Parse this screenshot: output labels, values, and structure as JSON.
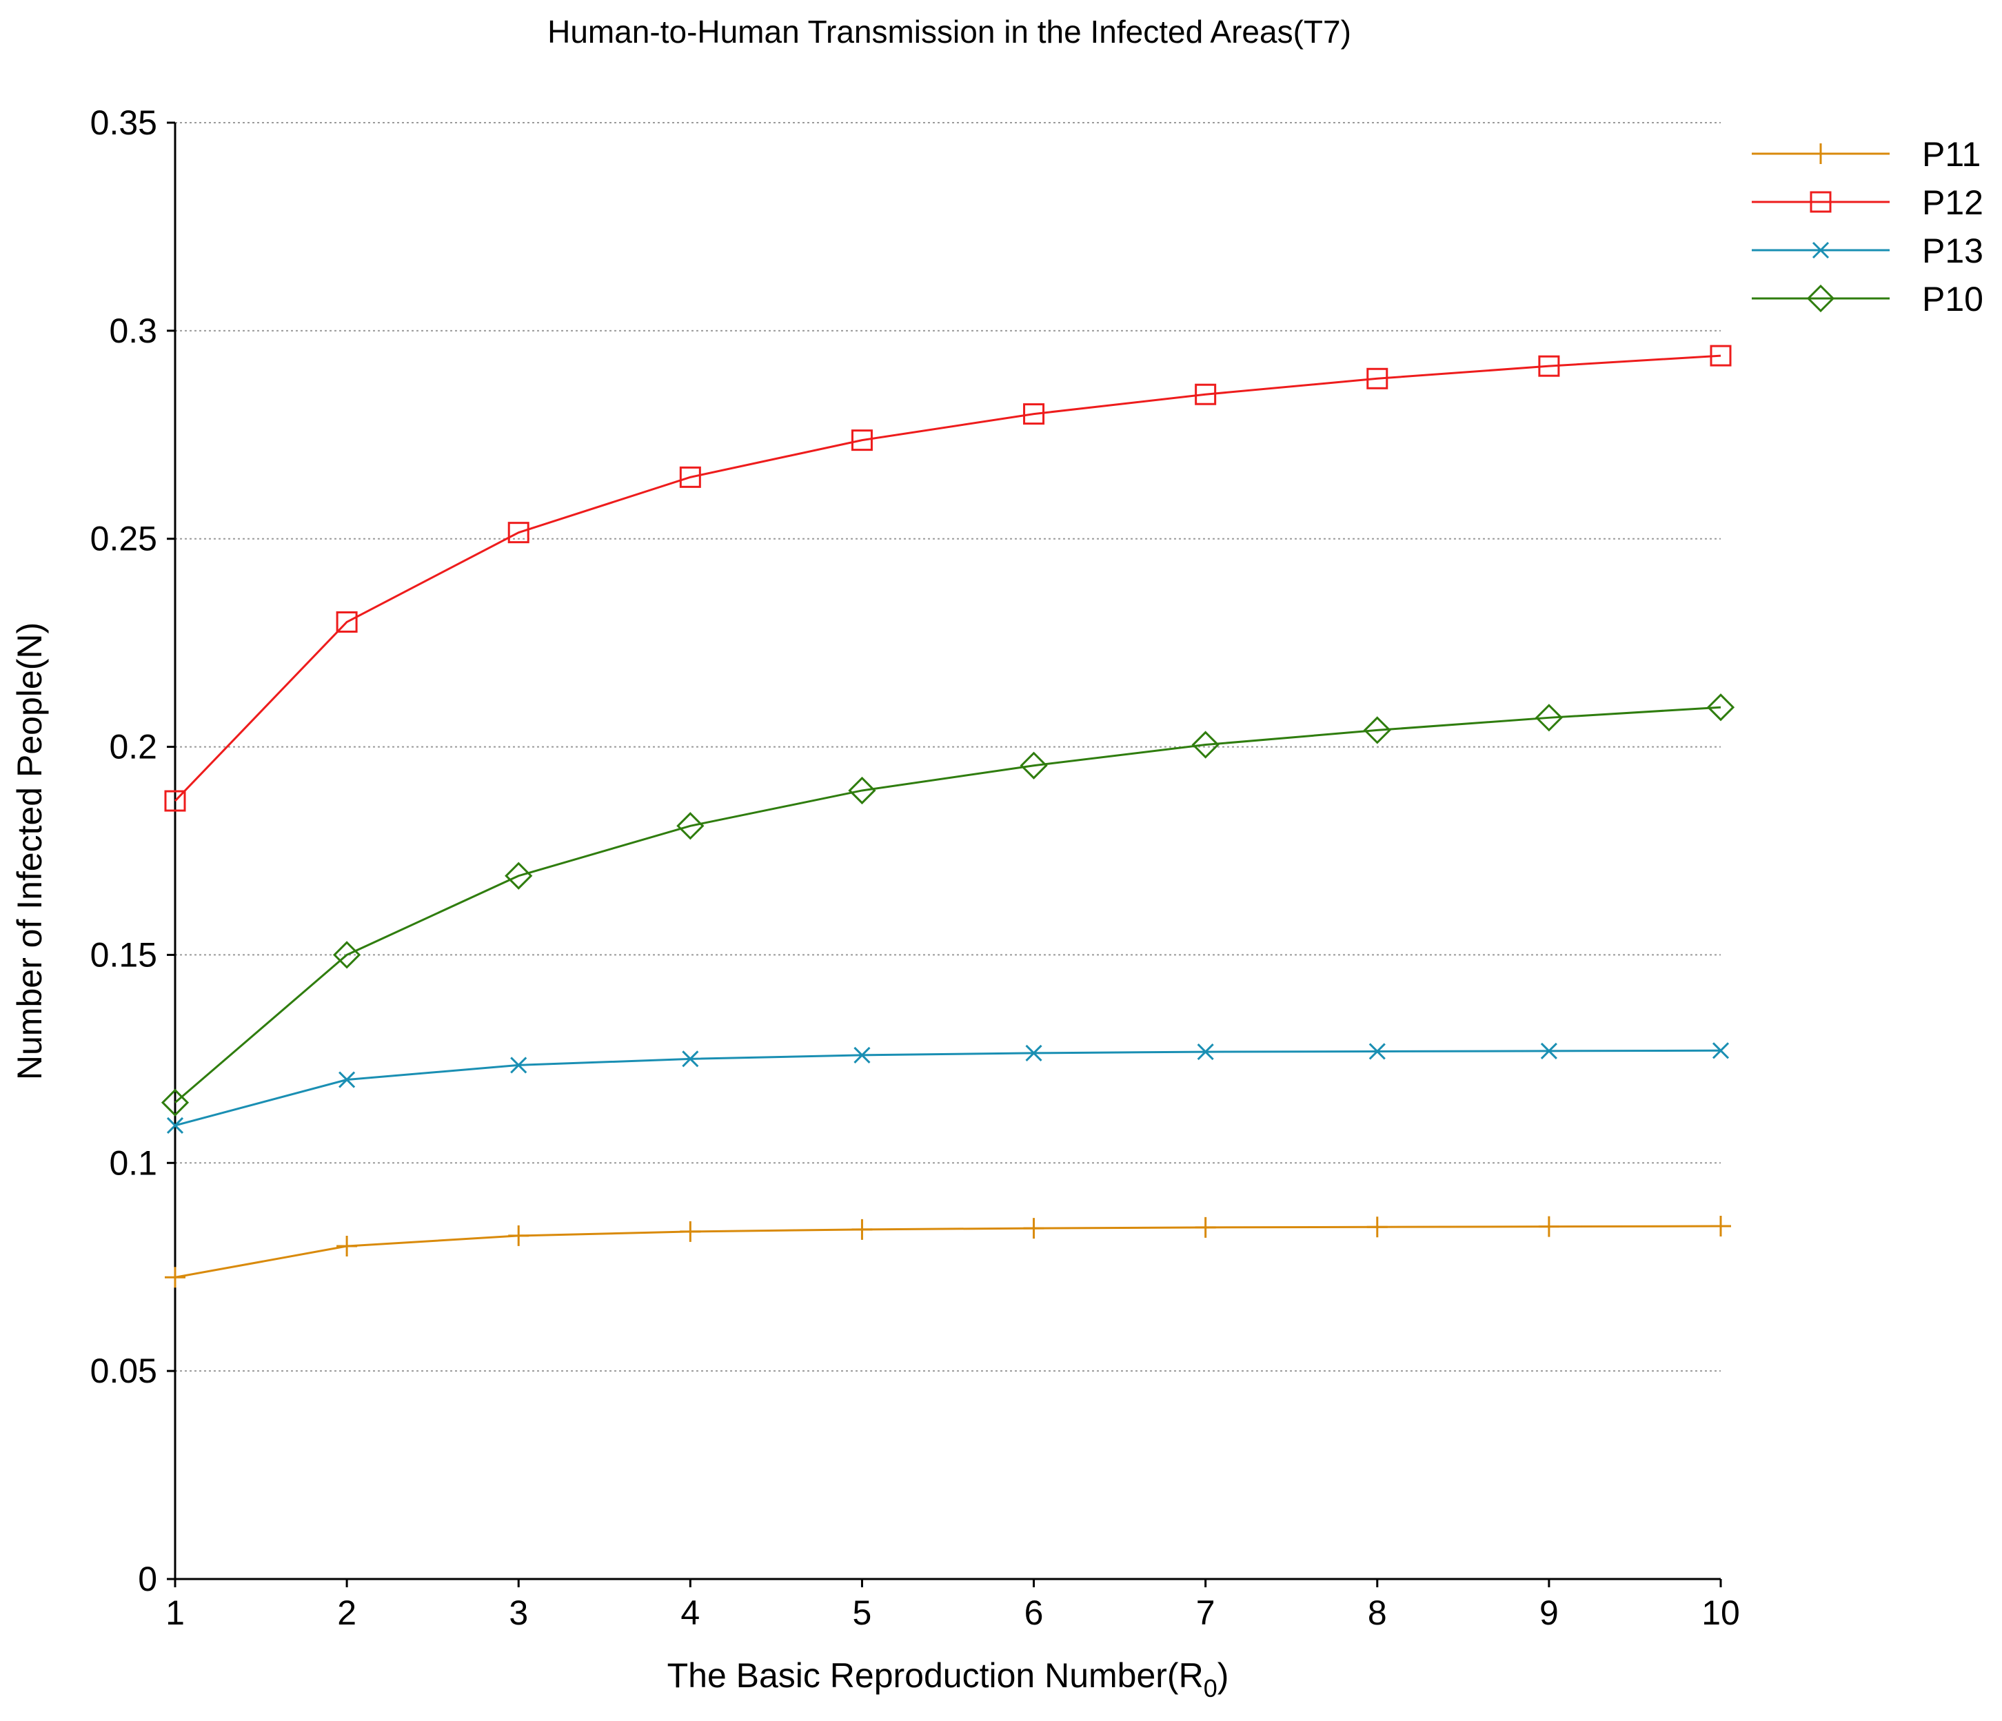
{
  "chart_data": {
    "type": "line",
    "title": "Human-to-Human Transmission in the Infected Areas(T7)",
    "xlabel": "The Basic Reproduction Number(R",
    "xlabel_subscript": "0",
    "xlabel_suffix": ")",
    "ylabel": "Number of Infected People(N)",
    "x": [
      1,
      2,
      3,
      4,
      5,
      6,
      7,
      8,
      9,
      10
    ],
    "xlim": [
      1,
      10
    ],
    "ylim": [
      0,
      0.35
    ],
    "x_ticks": [
      "1",
      "2",
      "3",
      "4",
      "5",
      "6",
      "7",
      "8",
      "9",
      "10"
    ],
    "y_ticks": [
      {
        "value": 0,
        "label": "0"
      },
      {
        "value": 0.05,
        "label": "0.05"
      },
      {
        "value": 0.1,
        "label": "0.1"
      },
      {
        "value": 0.15,
        "label": "0.15"
      },
      {
        "value": 0.2,
        "label": "0.2"
      },
      {
        "value": 0.25,
        "label": "0.25"
      },
      {
        "value": 0.3,
        "label": "0.3"
      },
      {
        "value": 0.35,
        "label": "0.35"
      }
    ],
    "grid": "horizontal dotted",
    "legend_position": "top-right",
    "series": [
      {
        "name": "P11",
        "color": "#d98a0b",
        "marker": "plus",
        "values": [
          0.0725,
          0.08,
          0.0825,
          0.0835,
          0.084,
          0.0843,
          0.0845,
          0.0846,
          0.0847,
          0.0848
        ]
      },
      {
        "name": "P12",
        "color": "#ee1c1c",
        "marker": "square",
        "values": [
          0.187,
          0.23,
          0.2515,
          0.2648,
          0.2737,
          0.28,
          0.2847,
          0.2885,
          0.2915,
          0.294
        ]
      },
      {
        "name": "P13",
        "color": "#1a8fb3",
        "marker": "x",
        "values": [
          0.109,
          0.12,
          0.1235,
          0.125,
          0.1259,
          0.1264,
          0.1267,
          0.1268,
          0.1269,
          0.127
        ]
      },
      {
        "name": "P10",
        "color": "#2f7d0e",
        "marker": "diamond",
        "values": [
          0.1145,
          0.15,
          0.169,
          0.181,
          0.1895,
          0.1955,
          0.2005,
          0.204,
          0.207,
          0.2095
        ]
      }
    ]
  }
}
